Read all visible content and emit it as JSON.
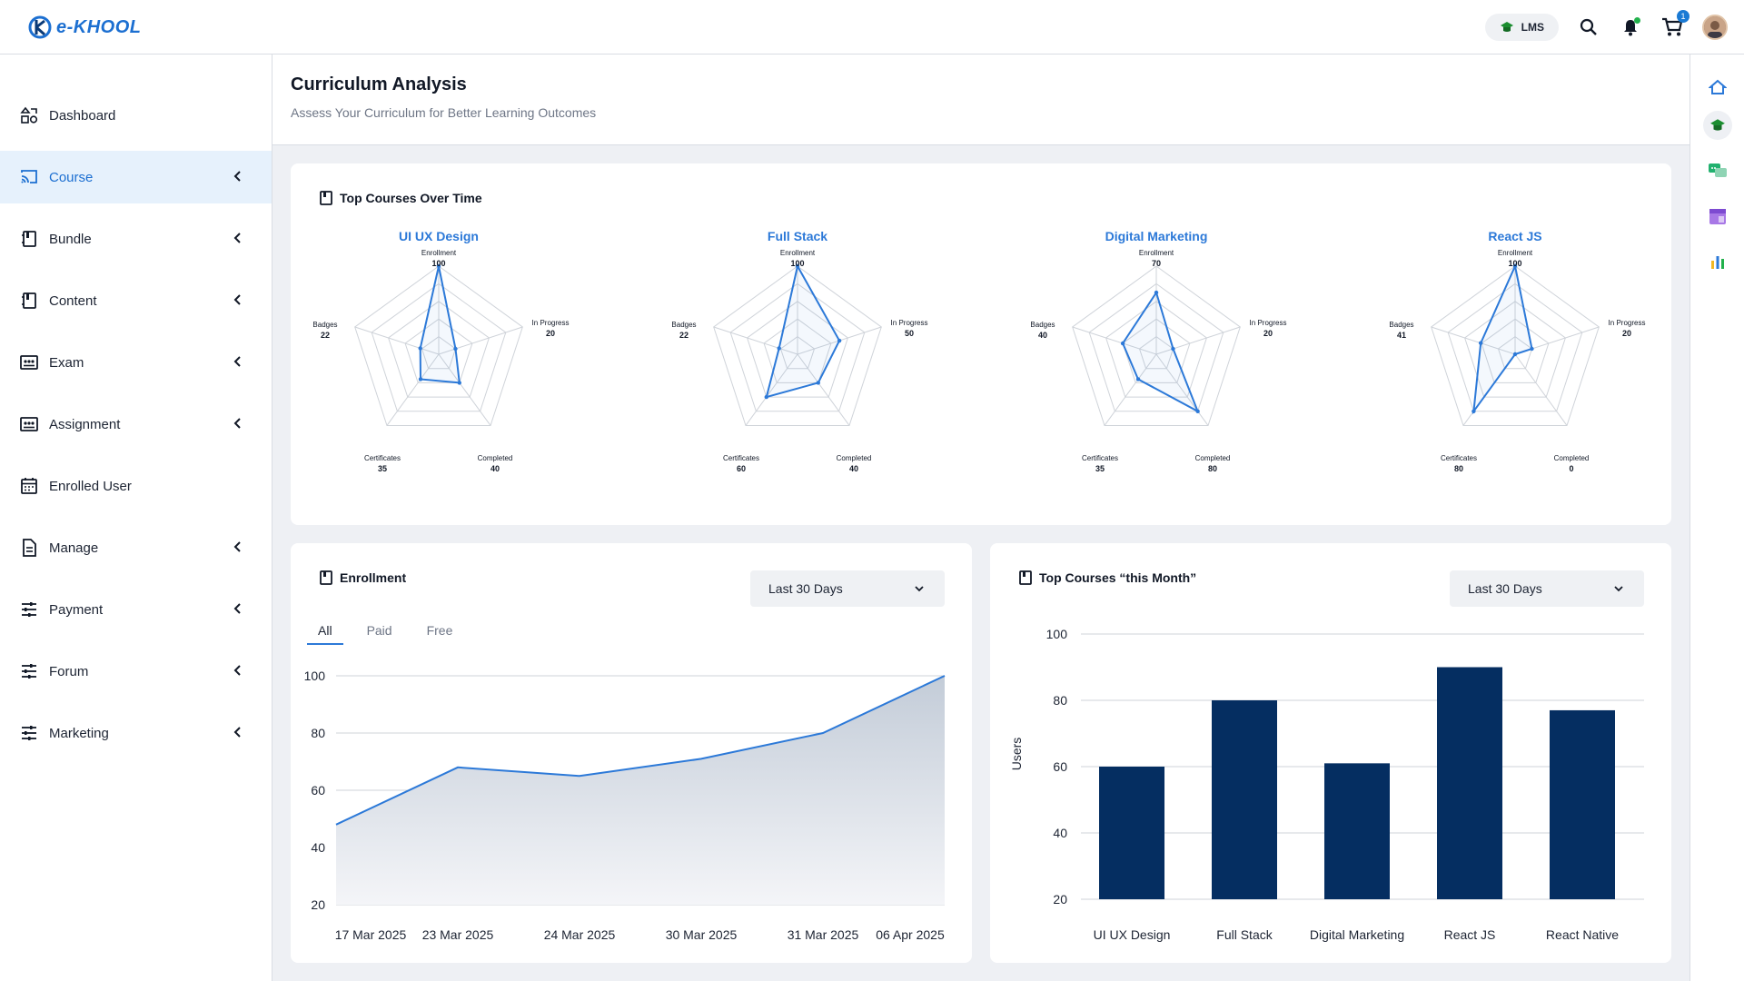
{
  "header": {
    "logo_text": "e-KHOOL",
    "lms_label": "LMS",
    "cart_count": "1"
  },
  "sidebar": {
    "items": [
      {
        "label": "Dashboard",
        "icon": "dashboard-icon",
        "has_chevron": false,
        "active": false
      },
      {
        "label": "Course",
        "icon": "cast-icon",
        "has_chevron": true,
        "active": true
      },
      {
        "label": "Bundle",
        "icon": "notebook-icon",
        "has_chevron": true,
        "active": false
      },
      {
        "label": "Content",
        "icon": "notebook-icon",
        "has_chevron": true,
        "active": false
      },
      {
        "label": "Exam",
        "icon": "board-icon",
        "has_chevron": true,
        "active": false
      },
      {
        "label": "Assignment",
        "icon": "board-icon",
        "has_chevron": true,
        "active": false
      },
      {
        "label": "Enrolled User",
        "icon": "calendar-icon",
        "has_chevron": false,
        "active": false
      },
      {
        "label": "Manage",
        "icon": "document-icon",
        "has_chevron": true,
        "active": false
      },
      {
        "label": "Payment",
        "icon": "sliders-icon",
        "has_chevron": true,
        "active": false
      },
      {
        "label": "Forum",
        "icon": "sliders-icon",
        "has_chevron": true,
        "active": false
      },
      {
        "label": "Marketing",
        "icon": "sliders-icon",
        "has_chevron": true,
        "active": false
      }
    ]
  },
  "rail": {
    "items": [
      "home-icon",
      "graduation-cap-icon",
      "chat-icon",
      "calendar-purple-icon",
      "bar-chart-icon"
    ]
  },
  "page": {
    "title": "Curriculum Analysis",
    "subtitle": "Assess Your Curriculum for Better Learning Outcomes"
  },
  "top_courses_card": {
    "title": "Top Courses Over Time"
  },
  "enrollment_card": {
    "title": "Enrollment",
    "select_value": "Last 30 Days",
    "tabs": [
      "All",
      "Paid",
      "Free"
    ],
    "active_tab": "All"
  },
  "month_card": {
    "title": "Top Courses “this Month”",
    "select_value": "Last 30 Days"
  },
  "chart_data": [
    {
      "type": "radar",
      "title": "UI UX Design",
      "axes": [
        "Enrollment",
        "In Progress",
        "Completed",
        "Certificates",
        "Badges"
      ],
      "values": [
        100,
        20,
        40,
        35,
        22
      ],
      "max": 100
    },
    {
      "type": "radar",
      "title": "Full Stack",
      "axes": [
        "Enrollment",
        "In Progress",
        "Completed",
        "Certificates",
        "Badges"
      ],
      "values": [
        100,
        50,
        40,
        60,
        22
      ],
      "max": 100
    },
    {
      "type": "radar",
      "title": "Digital Marketing",
      "axes": [
        "Enrollment",
        "In Progress",
        "Completed",
        "Certificates",
        "Badges"
      ],
      "values": [
        70,
        20,
        80,
        35,
        40
      ],
      "max": 100
    },
    {
      "type": "radar",
      "title": "React JS",
      "axes": [
        "Enrollment",
        "In Progress",
        "Completed",
        "Certificates",
        "Badges"
      ],
      "values": [
        100,
        20,
        0,
        80,
        41
      ],
      "max": 100
    },
    {
      "type": "area",
      "categories": [
        "17 Mar 2025",
        "23 Mar 2025",
        "24 Mar 2025",
        "30 Mar 2025",
        "31 Mar 2025",
        "06 Apr 2025"
      ],
      "values": [
        48,
        68,
        65,
        71,
        80,
        100
      ],
      "yticks": [
        20,
        40,
        60,
        80,
        100
      ],
      "ylim": [
        20,
        100
      ],
      "xlabel": "",
      "ylabel": ""
    },
    {
      "type": "bar",
      "categories": [
        "UI UX Design",
        "Full Stack",
        "Digital Marketing",
        "React JS",
        "React Native"
      ],
      "values": [
        60,
        80,
        61,
        90,
        77
      ],
      "yticks": [
        20,
        40,
        60,
        80,
        100
      ],
      "ylim": [
        20,
        100
      ],
      "ylabel": "Users",
      "xlabel": ""
    }
  ]
}
